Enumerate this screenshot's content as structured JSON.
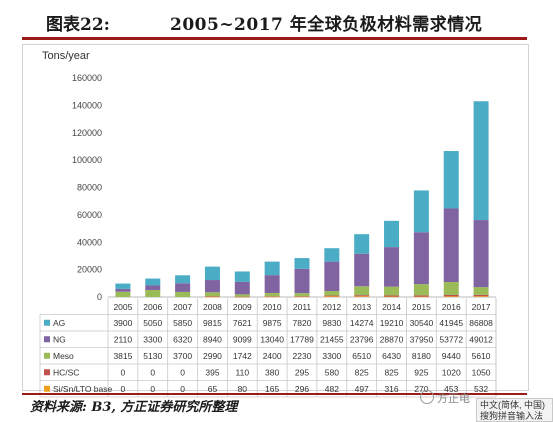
{
  "header": {
    "figure_label": "图表22:",
    "title": "2005~2017 年全球负极材料需求情况"
  },
  "footer": {
    "source": "资料来源: B3, 方正证券研究所整理",
    "watermark": "方正电"
  },
  "ime": {
    "line1": "中文(简体, 中国)",
    "line2": "搜狗拼音输入法"
  },
  "chart_data": {
    "type": "bar",
    "stacked": true,
    "unit_label": "Tons/year",
    "categories": [
      "2005",
      "2006",
      "2007",
      "2008",
      "2009",
      "2010",
      "2011",
      "2012",
      "2013",
      "2014",
      "2015",
      "2016",
      "2017"
    ],
    "ylim": [
      0,
      160000
    ],
    "yticks": [
      0,
      20000,
      40000,
      60000,
      80000,
      100000,
      120000,
      140000,
      160000
    ],
    "ytick_labels": [
      "0",
      "20000",
      "40000",
      "60000",
      "80000",
      "100000",
      "120000",
      "140000",
      "160000"
    ],
    "grid": false,
    "legend_placement": "table-below",
    "series": [
      {
        "name": "Si/Sn/LTO base",
        "color": "#f0a020",
        "values": [
          0,
          0,
          0,
          65,
          80,
          165,
          296,
          482,
          497,
          316,
          270,
          453,
          532
        ]
      },
      {
        "name": "HC/SC",
        "color": "#c0504d",
        "values": [
          0,
          0,
          0,
          395,
          110,
          380,
          295,
          580,
          825,
          825,
          925,
          1020,
          1050
        ]
      },
      {
        "name": "Meso",
        "color": "#9bbb59",
        "values": [
          3815,
          5130,
          3700,
          2990,
          1742,
          2400,
          2230,
          3300,
          6510,
          6430,
          8180,
          9440,
          5610
        ]
      },
      {
        "name": "NG",
        "color": "#8064a2",
        "values": [
          2110,
          3300,
          6320,
          8940,
          9099,
          13040,
          17789,
          21455,
          23796,
          28870,
          37950,
          53772,
          49012
        ]
      },
      {
        "name": "AG",
        "color": "#4bacc6",
        "values": [
          3900,
          5050,
          5850,
          9815,
          7621,
          9875,
          7820,
          9830,
          14274,
          19210,
          30540,
          41945,
          86808
        ]
      }
    ],
    "table_rows": [
      {
        "name": "AG",
        "cells": [
          "3900",
          "5050",
          "5850",
          "9815",
          "7621",
          "9875",
          "7820",
          "9830",
          "14274",
          "19210",
          "30540",
          "41945",
          "86808"
        ]
      },
      {
        "name": "NG",
        "cells": [
          "2110",
          "3300",
          "6320",
          "8940",
          "9099",
          "13040",
          "17789",
          "21455",
          "23796",
          "28870",
          "37950",
          "53772",
          "49012"
        ]
      },
      {
        "name": "Meso",
        "cells": [
          "3815",
          "5130",
          "3700",
          "2990",
          "1742",
          "2400",
          "2230",
          "3300",
          "6510",
          "6430",
          "8180",
          "9440",
          "5610"
        ]
      },
      {
        "name": "HC/SC",
        "cells": [
          "0",
          "0",
          "0",
          "395",
          "110",
          "380",
          "295",
          "580",
          "825",
          "825",
          "925",
          "1020",
          "1050"
        ]
      },
      {
        "name": "Si/Sn/LTO base",
        "cells": [
          "0",
          "0",
          "0",
          "65",
          "80",
          "165",
          "296",
          "482",
          "497",
          "316",
          "270",
          "453",
          "532"
        ]
      }
    ]
  }
}
